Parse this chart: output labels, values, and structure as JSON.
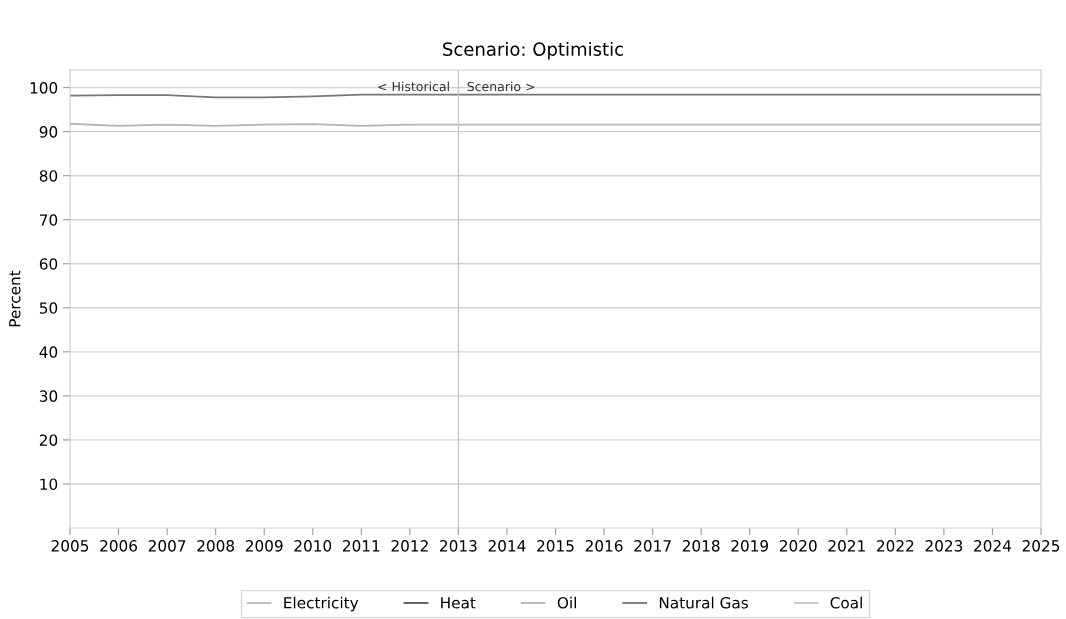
{
  "chart_data": {
    "type": "line",
    "title": "Scenario: Optimistic",
    "ylabel": "Percent",
    "x": [
      2005,
      2006,
      2007,
      2008,
      2009,
      2010,
      2011,
      2012,
      2013,
      2014,
      2015,
      2016,
      2017,
      2018,
      2019,
      2020,
      2021,
      2022,
      2023,
      2024,
      2025
    ],
    "series": [
      {
        "name": "Electricity",
        "color": "#bbbbbb",
        "values": [
          null,
          null,
          null,
          null,
          null,
          null,
          null,
          null,
          null,
          null,
          null,
          null,
          null,
          null,
          null,
          null,
          null,
          null,
          null,
          null,
          null
        ]
      },
      {
        "name": "Heat",
        "color": "#555555",
        "values": [
          null,
          null,
          null,
          null,
          null,
          null,
          null,
          null,
          null,
          null,
          null,
          null,
          null,
          null,
          null,
          null,
          null,
          null,
          null,
          null,
          null
        ]
      },
      {
        "name": "Oil",
        "color": "#b4b4b4",
        "values": [
          91.8,
          91.3,
          91.6,
          91.3,
          91.6,
          91.7,
          91.3,
          91.6,
          91.6,
          91.6,
          91.6,
          91.6,
          91.6,
          91.6,
          91.6,
          91.6,
          91.6,
          91.6,
          91.6,
          91.6,
          91.6
        ]
      },
      {
        "name": "Natural Gas",
        "color": "#777777",
        "values": [
          98.2,
          98.3,
          98.3,
          97.8,
          97.8,
          98.0,
          98.4,
          98.4,
          98.4,
          98.4,
          98.4,
          98.4,
          98.4,
          98.4,
          98.4,
          98.4,
          98.4,
          98.4,
          98.4,
          98.4,
          98.4
        ]
      },
      {
        "name": "Coal",
        "color": "#c4c4c4",
        "values": [
          null,
          null,
          null,
          null,
          null,
          null,
          null,
          null,
          null,
          null,
          null,
          null,
          null,
          null,
          null,
          null,
          null,
          null,
          null,
          null,
          null
        ]
      }
    ],
    "xlim": [
      2005,
      2025
    ],
    "xticks": [
      2005,
      2006,
      2007,
      2008,
      2009,
      2010,
      2011,
      2012,
      2013,
      2014,
      2015,
      2016,
      2017,
      2018,
      2019,
      2020,
      2021,
      2022,
      2023,
      2024,
      2025
    ],
    "ylim": [
      0,
      104
    ],
    "yticks": [
      10,
      20,
      30,
      40,
      50,
      60,
      70,
      80,
      90,
      100
    ],
    "ref_lines": [
      {
        "axis": "x",
        "value": 2013,
        "color": "#c8c8c8"
      }
    ],
    "annotations": [
      {
        "text": "< Historical",
        "x": 2013,
        "y": 100
      },
      {
        "text": "Scenario >",
        "x": 2013,
        "y": 100
      }
    ],
    "grid": "y",
    "legend": "bottom",
    "marker": "none",
    "line_style": "solid"
  }
}
